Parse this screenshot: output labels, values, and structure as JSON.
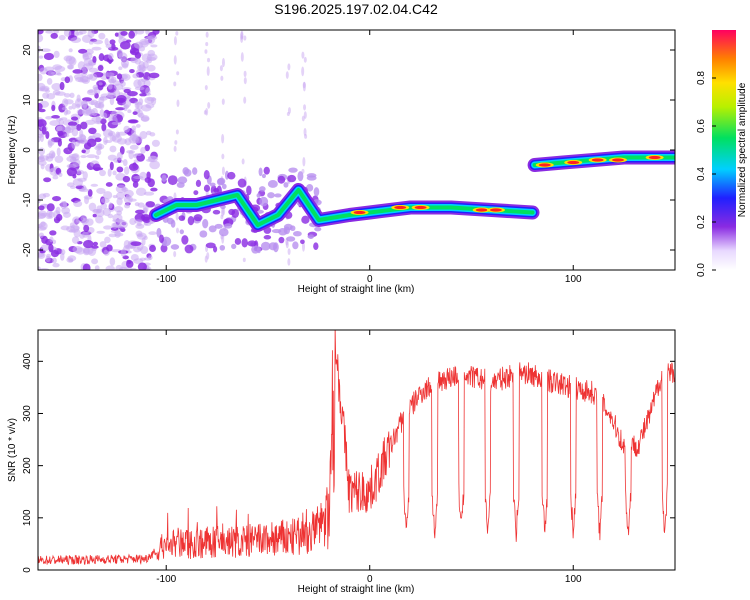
{
  "title": "S196.2025.197.02.04.C42",
  "chart_data": [
    {
      "type": "heatmap",
      "xlabel": "Height of straight line (km)",
      "ylabel": "Frequency (Hz)",
      "xlim": [
        -163,
        150
      ],
      "ylim": [
        -24,
        24
      ],
      "xticks": [
        -100,
        0,
        100
      ],
      "yticks": [
        -20,
        -10,
        0,
        10,
        20
      ],
      "colorbar": {
        "label": "Normalized spectral amplitude",
        "range": [
          0,
          1
        ],
        "ticks": [
          "0.0",
          "0.2",
          "0.4",
          "0.6",
          "0.8"
        ]
      },
      "ridge": [
        {
          "x": -105,
          "y": -13
        },
        {
          "x": -95,
          "y": -11
        },
        {
          "x": -85,
          "y": -11
        },
        {
          "x": -75,
          "y": -10
        },
        {
          "x": -65,
          "y": -9
        },
        {
          "x": -55,
          "y": -15
        },
        {
          "x": -45,
          "y": -13
        },
        {
          "x": -35,
          "y": -8
        },
        {
          "x": -25,
          "y": -14
        },
        {
          "x": -10,
          "y": -13
        },
        {
          "x": 0,
          "y": -12.5
        },
        {
          "x": 20,
          "y": -11.5
        },
        {
          "x": 40,
          "y": -11.5
        },
        {
          "x": 60,
          "y": -12
        },
        {
          "x": 80,
          "y": -12.5
        },
        {
          "x": 81,
          "y": -3
        },
        {
          "x": 95,
          "y": -2.5
        },
        {
          "x": 110,
          "y": -2
        },
        {
          "x": 125,
          "y": -1.5
        },
        {
          "x": 140,
          "y": -1.5
        },
        {
          "x": 150,
          "y": -1.5
        }
      ]
    },
    {
      "type": "line",
      "xlabel": "Height of straight line (km)",
      "ylabel": "SNR (10 * v/v)",
      "xlim": [
        -163,
        150
      ],
      "ylim": [
        0,
        460
      ],
      "xticks": [
        -100,
        0,
        100
      ],
      "yticks": [
        0,
        100,
        200,
        300,
        400
      ],
      "color": "#ee3333",
      "envelope": [
        {
          "x": -163,
          "y": 15
        },
        {
          "x": -110,
          "y": 18
        },
        {
          "x": -100,
          "y": 50
        },
        {
          "x": -60,
          "y": 55
        },
        {
          "x": -30,
          "y": 65
        },
        {
          "x": -20,
          "y": 100
        },
        {
          "x": -17,
          "y": 440
        },
        {
          "x": -10,
          "y": 150
        },
        {
          "x": 0,
          "y": 150
        },
        {
          "x": 5,
          "y": 190
        },
        {
          "x": 15,
          "y": 280
        },
        {
          "x": 25,
          "y": 340
        },
        {
          "x": 35,
          "y": 365
        },
        {
          "x": 45,
          "y": 375
        },
        {
          "x": 60,
          "y": 360
        },
        {
          "x": 75,
          "y": 380
        },
        {
          "x": 90,
          "y": 360
        },
        {
          "x": 110,
          "y": 340
        },
        {
          "x": 118,
          "y": 300
        },
        {
          "x": 125,
          "y": 235
        },
        {
          "x": 132,
          "y": 240
        },
        {
          "x": 138,
          "y": 300
        },
        {
          "x": 143,
          "y": 370
        },
        {
          "x": 150,
          "y": 380
        }
      ],
      "dropouts": [
        {
          "x": 18,
          "y": 70
        },
        {
          "x": 32,
          "y": 65
        },
        {
          "x": 45,
          "y": 75
        },
        {
          "x": 58,
          "y": 70
        },
        {
          "x": 72,
          "y": 70
        },
        {
          "x": 86,
          "y": 70
        },
        {
          "x": 100,
          "y": 70
        },
        {
          "x": 113,
          "y": 70
        },
        {
          "x": 127,
          "y": 70
        },
        {
          "x": 145,
          "y": 75
        }
      ]
    }
  ]
}
